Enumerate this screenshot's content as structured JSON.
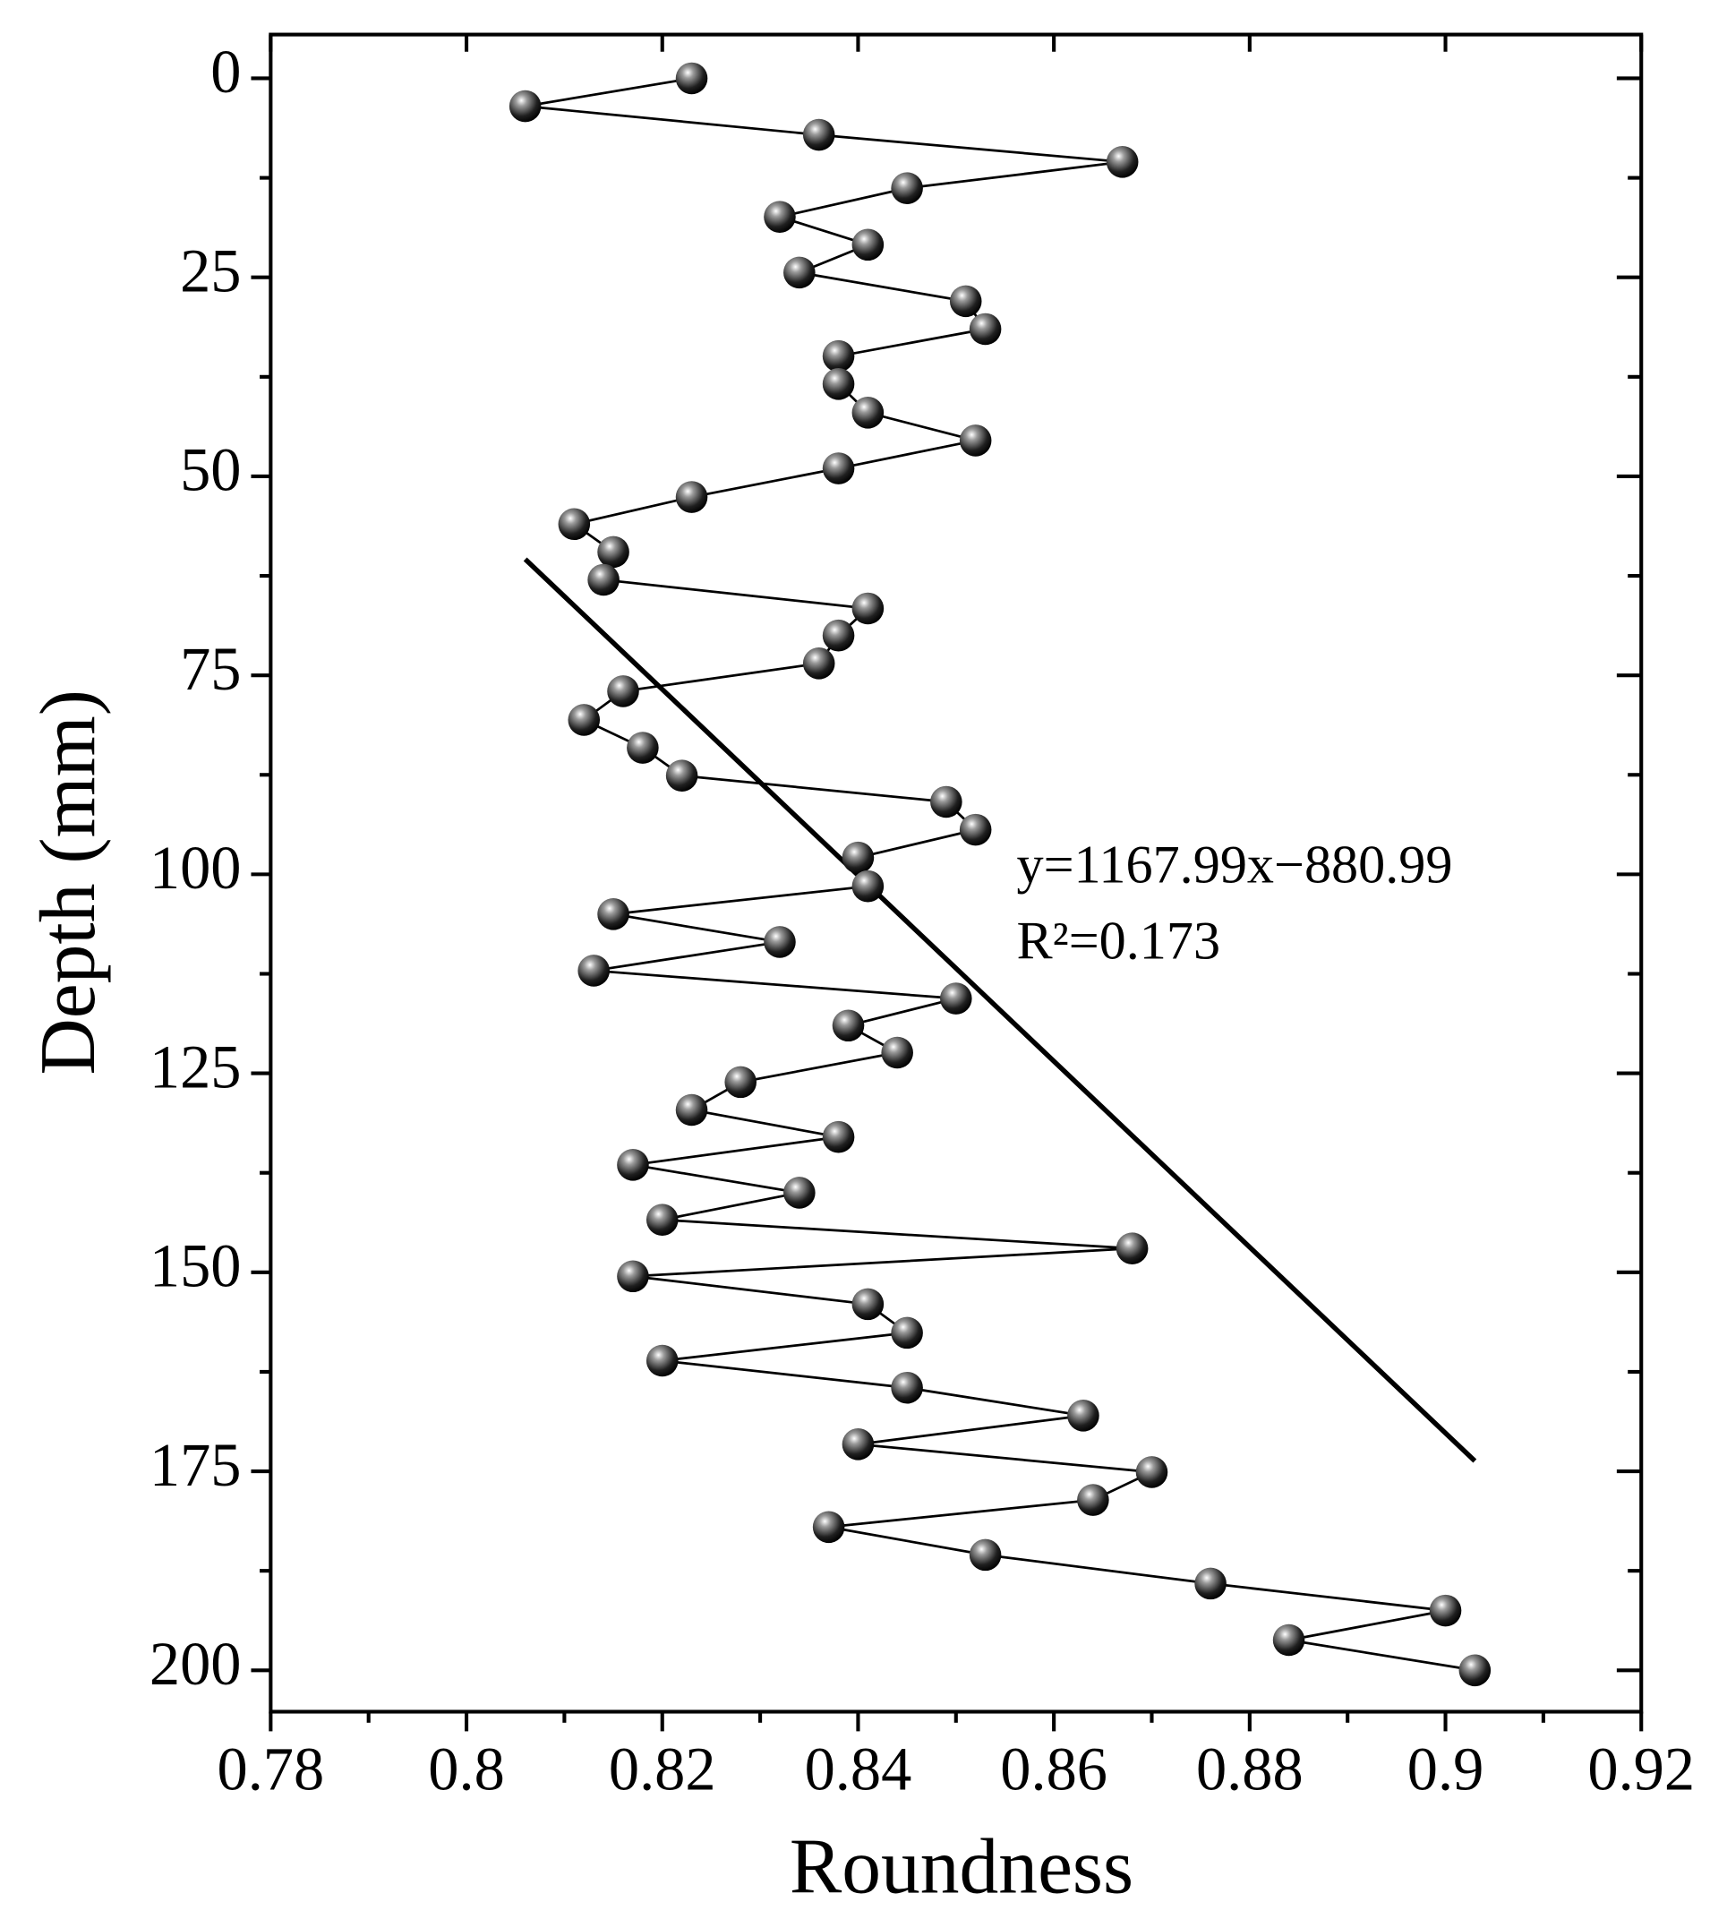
{
  "chart_data": {
    "type": "line",
    "x_label": "Roundness",
    "y_label": "Depth (mm)",
    "series": [
      {
        "name": null,
        "color": "#000000",
        "marker": "sphere",
        "x": [
          0.823,
          0.806,
          0.836,
          0.867,
          0.845,
          0.832,
          0.841,
          0.834,
          0.851,
          0.853,
          0.838,
          0.838,
          0.841,
          0.852,
          0.838,
          0.823,
          0.811,
          0.815,
          0.814,
          0.841,
          0.838,
          0.836,
          0.816,
          0.812,
          0.818,
          0.822,
          0.849,
          0.852,
          0.84,
          0.841,
          0.815,
          0.832,
          0.813,
          0.85,
          0.839,
          0.844,
          0.828,
          0.823,
          0.838,
          0.817,
          0.834,
          0.82,
          0.868,
          0.817,
          0.841,
          0.845,
          0.82,
          0.845,
          0.863,
          0.84,
          0.87,
          0.864,
          0.837,
          0.853,
          0.876,
          0.9,
          0.884,
          0.903
        ],
        "values": [
          0,
          3.5,
          7.1,
          10.5,
          13.8,
          17.4,
          20.9,
          24.4,
          28,
          31.5,
          34.9,
          38.4,
          42,
          45.5,
          49,
          52.6,
          56,
          59.5,
          63,
          66.6,
          70,
          73.5,
          77,
          80.6,
          84.1,
          87.6,
          90.9,
          94.4,
          97.9,
          101.5,
          105,
          108.5,
          112.1,
          115.6,
          119,
          122.4,
          126.1,
          129.6,
          133,
          136.5,
          140,
          143.4,
          147,
          150.5,
          154,
          157.6,
          161.1,
          164.5,
          168,
          171.6,
          175.1,
          178.6,
          182,
          185.5,
          189.1,
          192.5,
          196.2,
          200
        ]
      }
    ],
    "fit": {
      "slope": 1167.99,
      "intercept": -880.99,
      "x_range": [
        0.806,
        0.903
      ],
      "label": "y=1167.99x−880.99",
      "r2_label": "R²=0.173"
    },
    "xlim": [
      0.78,
      0.92
    ],
    "xticks": [
      0.78,
      0.8,
      0.82,
      0.84,
      0.86,
      0.88,
      0.9,
      0.92
    ],
    "x_minor_ticks": [
      0.79,
      0.81,
      0.83,
      0.85,
      0.87,
      0.89,
      0.91
    ],
    "ylim": [
      -5.5,
      205.2
    ],
    "y_inverted": true,
    "yticks": [
      0,
      25,
      50,
      75,
      100,
      125,
      150,
      175,
      200
    ],
    "y_minor_ticks": [
      12.5,
      37.5,
      62.5,
      87.5,
      112.5,
      137.5,
      162.5,
      187.5
    ],
    "grid": false
  }
}
